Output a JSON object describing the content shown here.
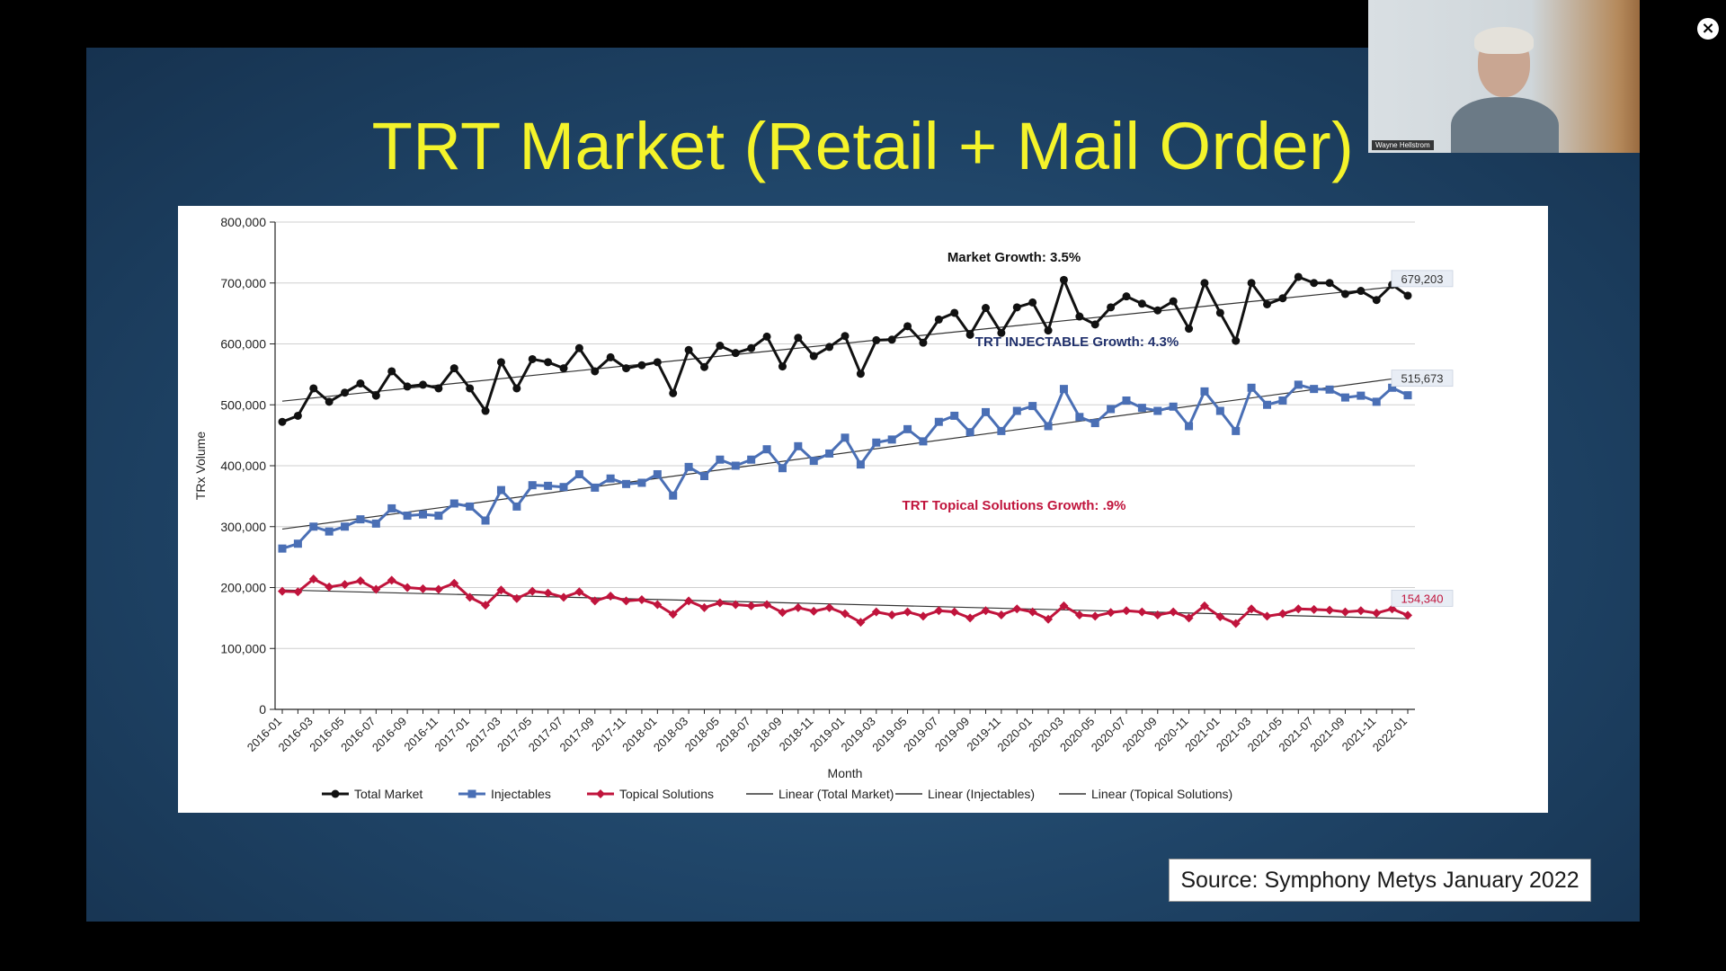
{
  "slide": {
    "title": "TRT Market (Retail + Mail Order)",
    "source": "Source: Symphony Metys January 2022"
  },
  "video": {
    "participant_name": "Wayne Hellstrom",
    "close_icon": "close-icon"
  },
  "colors": {
    "slide_background": "#1f4467",
    "title": "#f4f32a",
    "total_market": "#111111",
    "injectables": "#4a6fb5",
    "topical": "#c0143c",
    "trend": "#333333"
  },
  "chart_data": {
    "type": "line",
    "xlabel": "Month",
    "ylabel": "TRx Volume",
    "ylim": [
      0,
      800000
    ],
    "yticks": [
      0,
      100000,
      200000,
      300000,
      400000,
      500000,
      600000,
      700000,
      800000
    ],
    "ytick_labels": [
      "0",
      "100,000",
      "200,000",
      "300,000",
      "400,000",
      "500,000",
      "600,000",
      "700,000",
      "800,000"
    ],
    "xtick_labels": [
      "2016-01",
      "2016-03",
      "2016-05",
      "2016-07",
      "2016-09",
      "2016-11",
      "2017-01",
      "2017-03",
      "2017-05",
      "2017-07",
      "2017-09",
      "2017-11",
      "2018-01",
      "2018-03",
      "2018-05",
      "2018-07",
      "2018-09",
      "2018-11",
      "2019-01",
      "2019-03",
      "2019-05",
      "2019-07",
      "2019-09",
      "2019-11",
      "2020-01",
      "2020-03",
      "2020-05",
      "2020-07",
      "2020-09",
      "2020-11",
      "2021-01",
      "2021-03",
      "2021-05",
      "2021-07",
      "2021-09",
      "2021-11",
      "2022-01"
    ],
    "x": [
      "2016-01",
      "2016-02",
      "2016-03",
      "2016-04",
      "2016-05",
      "2016-06",
      "2016-07",
      "2016-08",
      "2016-09",
      "2016-10",
      "2016-11",
      "2016-12",
      "2017-01",
      "2017-02",
      "2017-03",
      "2017-04",
      "2017-05",
      "2017-06",
      "2017-07",
      "2017-08",
      "2017-09",
      "2017-10",
      "2017-11",
      "2017-12",
      "2018-01",
      "2018-02",
      "2018-03",
      "2018-04",
      "2018-05",
      "2018-06",
      "2018-07",
      "2018-08",
      "2018-09",
      "2018-10",
      "2018-11",
      "2018-12",
      "2019-01",
      "2019-02",
      "2019-03",
      "2019-04",
      "2019-05",
      "2019-06",
      "2019-07",
      "2019-08",
      "2019-09",
      "2019-10",
      "2019-11",
      "2019-12",
      "2020-01",
      "2020-02",
      "2020-03",
      "2020-04",
      "2020-05",
      "2020-06",
      "2020-07",
      "2020-08",
      "2020-09",
      "2020-10",
      "2020-11",
      "2020-12",
      "2021-01",
      "2021-02",
      "2021-03",
      "2021-04",
      "2021-05",
      "2021-06",
      "2021-07",
      "2021-08",
      "2021-09",
      "2021-10",
      "2021-11",
      "2021-12",
      "2022-01"
    ],
    "series": [
      {
        "name": "Total Market",
        "color": "#111111",
        "marker": "circle",
        "values": [
          472000,
          482000,
          527000,
          505000,
          520000,
          535000,
          515000,
          555000,
          530000,
          533000,
          527000,
          560000,
          527000,
          490000,
          570000,
          527000,
          575000,
          570000,
          560000,
          593000,
          555000,
          578000,
          560000,
          565000,
          570000,
          519000,
          590000,
          562000,
          597000,
          585000,
          593000,
          612000,
          563000,
          610000,
          580000,
          595000,
          613000,
          551000,
          606000,
          607000,
          629000,
          602000,
          640000,
          651000,
          615000,
          659000,
          618000,
          660000,
          668000,
          622000,
          705000,
          645000,
          632000,
          660000,
          678000,
          666000,
          655000,
          670000,
          625000,
          700000,
          651000,
          605000,
          700000,
          665000,
          675000,
          710000,
          700000,
          700000,
          682000,
          687000,
          672000,
          697000,
          679203
        ]
      },
      {
        "name": "Injectables",
        "color": "#4a6fb5",
        "marker": "square",
        "values": [
          264000,
          272000,
          300000,
          292000,
          300000,
          312000,
          305000,
          330000,
          318000,
          320000,
          318000,
          338000,
          333000,
          310000,
          360000,
          333000,
          368000,
          367000,
          365000,
          386000,
          364000,
          379000,
          370000,
          372000,
          386000,
          351000,
          398000,
          383000,
          410000,
          400000,
          410000,
          427000,
          396000,
          432000,
          408000,
          420000,
          446000,
          402000,
          438000,
          443000,
          460000,
          440000,
          472000,
          482000,
          455000,
          488000,
          457000,
          490000,
          498000,
          465000,
          526000,
          480000,
          470000,
          493000,
          507000,
          495000,
          490000,
          497000,
          465000,
          522000,
          490000,
          457000,
          528000,
          500000,
          507000,
          533000,
          526000,
          525000,
          512000,
          515000,
          505000,
          528000,
          515673
        ]
      },
      {
        "name": "Topical Solutions",
        "color": "#c0143c",
        "marker": "diamond",
        "values": [
          194000,
          193000,
          214000,
          201000,
          205000,
          211000,
          197000,
          212000,
          200000,
          198000,
          197000,
          207000,
          184000,
          171000,
          196000,
          182000,
          194000,
          191000,
          184000,
          193000,
          178000,
          186000,
          178000,
          180000,
          172000,
          156000,
          178000,
          167000,
          175000,
          172000,
          170000,
          172000,
          159000,
          167000,
          161000,
          167000,
          157000,
          143000,
          160000,
          155000,
          160000,
          153000,
          162000,
          160000,
          150000,
          162000,
          155000,
          165000,
          160000,
          148000,
          170000,
          155000,
          153000,
          159000,
          162000,
          160000,
          155000,
          160000,
          150000,
          170000,
          152000,
          141000,
          165000,
          153000,
          157000,
          165000,
          164000,
          163000,
          160000,
          162000,
          158000,
          165000,
          154340
        ]
      }
    ],
    "trendlines": [
      {
        "name": "Linear (Total Market)",
        "start": 506000,
        "end": 696000
      },
      {
        "name": "Linear (Injectables)",
        "start": 296000,
        "end": 546000
      },
      {
        "name": "Linear (Topical Solutions)",
        "start": 196000,
        "end": 149000
      }
    ],
    "annotations": [
      {
        "text": "Market Growth: 3.5%",
        "color": "#111111"
      },
      {
        "text": "TRT INJECTABLE Growth: 4.3%",
        "color": "#1f2f6b"
      },
      {
        "text": "TRT Topical Solutions Growth: .9%",
        "color": "#c0143c"
      }
    ],
    "end_labels": [
      {
        "text": "679,203",
        "color": "#333333"
      },
      {
        "text": "515,673",
        "color": "#333333"
      },
      {
        "text": "154,340",
        "color": "#c0143c"
      }
    ],
    "legend": {
      "position": "bottom",
      "items": [
        "Total Market",
        "Injectables",
        "Topical Solutions",
        "Linear (Total Market)",
        "Linear (Injectables)",
        "Linear (Topical Solutions)"
      ]
    },
    "grid": true
  }
}
